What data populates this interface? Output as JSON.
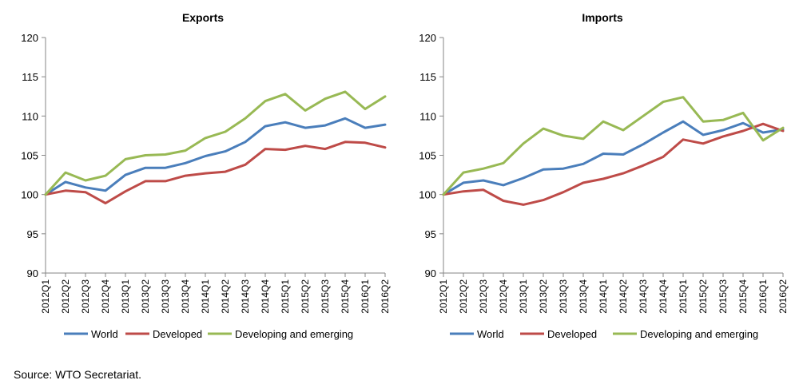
{
  "source_note": "Source: WTO Secretariat.",
  "colors": {
    "World": "#4a7ebb",
    "Developed": "#be4b48",
    "Developing and emerging": "#98b954",
    "axis": "#868686"
  },
  "chart_data": [
    {
      "type": "line",
      "title": "Exports",
      "categories": [
        "2012Q1",
        "2012Q2",
        "2012Q3",
        "2012Q4",
        "2013Q1",
        "2013Q2",
        "2013Q3",
        "2013Q4",
        "2014Q1",
        "2014Q2",
        "2014Q3",
        "2014Q4",
        "2015Q1",
        "2015Q2",
        "2015Q3",
        "2015Q4",
        "2016Q1",
        "2016Q2"
      ],
      "ylim": [
        90,
        120
      ],
      "yticks": [
        90,
        95,
        100,
        105,
        110,
        115,
        120
      ],
      "grid": false,
      "legend": "bottom",
      "series": [
        {
          "name": "World",
          "values": [
            100,
            101.6,
            100.9,
            100.5,
            102.5,
            103.4,
            103.4,
            104,
            104.9,
            105.5,
            106.7,
            108.7,
            109.2,
            108.5,
            108.8,
            109.7,
            108.5,
            108.9
          ]
        },
        {
          "name": "Developed",
          "values": [
            100,
            100.5,
            100.3,
            98.9,
            100.4,
            101.7,
            101.7,
            102.4,
            102.7,
            102.9,
            103.8,
            105.8,
            105.7,
            106.2,
            105.8,
            106.7,
            106.6,
            106
          ]
        },
        {
          "name": "Developing and emerging",
          "values": [
            100,
            102.8,
            101.8,
            102.4,
            104.5,
            105,
            105.1,
            105.6,
            107.2,
            108,
            109.7,
            111.9,
            112.8,
            110.7,
            112.2,
            113.1,
            110.9,
            112.5
          ]
        }
      ]
    },
    {
      "type": "line",
      "title": "Imports",
      "categories": [
        "2012Q1",
        "2012Q2",
        "2012Q3",
        "2012Q4",
        "2013Q1",
        "2013Q2",
        "2013Q3",
        "2013Q4",
        "2014Q1",
        "2014Q2",
        "2014Q3",
        "2014Q4",
        "2015Q1",
        "2015Q2",
        "2015Q3",
        "2015Q4",
        "2016Q1",
        "2016Q2"
      ],
      "ylim": [
        90,
        120
      ],
      "yticks": [
        90,
        95,
        100,
        105,
        110,
        115,
        120
      ],
      "grid": false,
      "legend": "bottom",
      "series": [
        {
          "name": "World",
          "values": [
            100,
            101.5,
            101.8,
            101.2,
            102.1,
            103.2,
            103.3,
            103.9,
            105.2,
            105.1,
            106.4,
            107.9,
            109.3,
            107.6,
            108.2,
            109.1,
            107.9,
            108.3
          ]
        },
        {
          "name": "Developed",
          "values": [
            100,
            100.4,
            100.6,
            99.2,
            98.7,
            99.3,
            100.3,
            101.5,
            102,
            102.7,
            103.7,
            104.8,
            107,
            106.5,
            107.4,
            108.1,
            109,
            108.1
          ]
        },
        {
          "name": "Developing and emerging",
          "values": [
            100,
            102.8,
            103.3,
            104,
            106.5,
            108.4,
            107.5,
            107.1,
            109.3,
            108.2,
            110,
            111.8,
            112.4,
            109.3,
            109.5,
            110.4,
            106.9,
            108.5
          ]
        }
      ]
    }
  ]
}
